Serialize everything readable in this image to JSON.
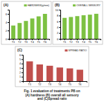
{
  "chart_data": [
    {
      "type": "bar",
      "title": "(A)",
      "categories": [
        "T1",
        "T2",
        "T3",
        "T4",
        "T5",
        "T6"
      ],
      "series": [
        {
          "name": "HARDNESS(g/mm)",
          "color": "#7dc142",
          "values": [
            3.2,
            3.8,
            4.3,
            4.9,
            5.4,
            6.0
          ]
        }
      ],
      "ylim": [
        0,
        7
      ],
      "yticks": [
        0,
        2,
        4,
        6
      ]
    },
    {
      "type": "bar",
      "title": "(B)",
      "categories": [
        "T1",
        "T2",
        "T3",
        "T4",
        "T5",
        "T6"
      ],
      "series": [
        {
          "name": "OVERALL SENSORY",
          "color": "#7dc142",
          "values": [
            7.2,
            7.5,
            7.8,
            8.1,
            8.3,
            8.6
          ]
        }
      ],
      "ylim": [
        0,
        10
      ],
      "yticks": [
        0,
        2,
        4,
        6,
        8,
        10
      ]
    },
    {
      "type": "bar",
      "title": "(C)",
      "categories": [
        "T1",
        "T2",
        "T3",
        "T4",
        "T5",
        "T6"
      ],
      "series": [
        {
          "name": "SPREAD RATIO",
          "color": "#c0504d",
          "values": [
            4.5,
            3.8,
            3.5,
            3.1,
            2.9,
            2.6
          ]
        }
      ],
      "ylim": [
        0,
        6
      ],
      "yticks": [
        0,
        1,
        2,
        3,
        4,
        5,
        6
      ]
    }
  ],
  "caption": [
    "Fig. 1 evaluation of treatments PB on",
    "(A) hardness (B) overall all sensory",
    "and (C)Spread ratio"
  ]
}
